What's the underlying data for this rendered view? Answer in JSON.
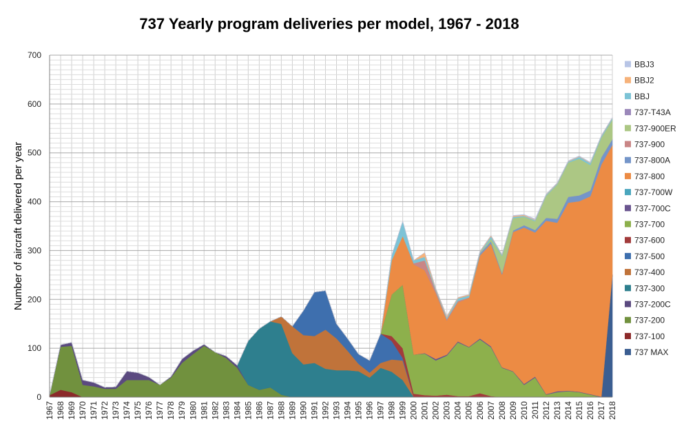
{
  "chart_data": {
    "type": "area",
    "stacked": true,
    "title": "737 Yearly program deliveries  per model, 1967 - 2018",
    "xlabel": "",
    "ylabel": "Number  of aircraft delivered per year",
    "ylim": [
      0,
      700
    ],
    "yticks": [
      0,
      100,
      200,
      300,
      400,
      500,
      600,
      700
    ],
    "grid": true,
    "legend_position": "right",
    "x": [
      1967,
      1968,
      1969,
      1970,
      1971,
      1972,
      1973,
      1974,
      1975,
      1976,
      1977,
      1978,
      1979,
      1980,
      1981,
      1982,
      1983,
      1984,
      1985,
      1986,
      1987,
      1988,
      1989,
      1990,
      1991,
      1992,
      1993,
      1994,
      1995,
      1996,
      1997,
      1998,
      1999,
      2000,
      2001,
      2002,
      2003,
      2004,
      2005,
      2006,
      2007,
      2008,
      2009,
      2010,
      2011,
      2012,
      2013,
      2014,
      2015,
      2016,
      2017,
      2018
    ],
    "series": [
      {
        "name": "737 MAX",
        "color": "#3b5e91",
        "values": [
          0,
          0,
          0,
          0,
          0,
          0,
          0,
          0,
          0,
          0,
          0,
          0,
          0,
          0,
          0,
          0,
          0,
          0,
          0,
          0,
          0,
          0,
          0,
          0,
          0,
          0,
          0,
          0,
          0,
          0,
          0,
          0,
          0,
          0,
          0,
          0,
          0,
          0,
          0,
          0,
          0,
          0,
          0,
          0,
          0,
          0,
          0,
          0,
          0,
          0,
          0,
          250
        ]
      },
      {
        "name": "737-100",
        "color": "#8c2a2a",
        "values": [
          4,
          15,
          10,
          0,
          0,
          0,
          0,
          0,
          0,
          0,
          0,
          0,
          0,
          0,
          0,
          0,
          0,
          0,
          0,
          0,
          0,
          0,
          0,
          0,
          0,
          0,
          0,
          0,
          0,
          0,
          0,
          0,
          0,
          0,
          0,
          0,
          0,
          0,
          0,
          0,
          0,
          0,
          0,
          0,
          0,
          0,
          0,
          0,
          0,
          0,
          0,
          0
        ]
      },
      {
        "name": "737-200",
        "color": "#71913e",
        "values": [
          0,
          88,
          95,
          25,
          22,
          17,
          17,
          35,
          35,
          35,
          25,
          40,
          70,
          88,
          105,
          92,
          80,
          60,
          25,
          15,
          20,
          5,
          0,
          0,
          0,
          0,
          0,
          0,
          0,
          0,
          0,
          0,
          0,
          0,
          0,
          0,
          0,
          0,
          0,
          0,
          0,
          0,
          0,
          0,
          0,
          0,
          0,
          0,
          0,
          0,
          0,
          0
        ]
      },
      {
        "name": "737-200C",
        "color": "#5b4a80",
        "values": [
          0,
          4,
          7,
          10,
          8,
          3,
          4,
          18,
          15,
          6,
          0,
          2,
          8,
          7,
          3,
          0,
          4,
          5,
          0,
          0,
          0,
          0,
          0,
          0,
          0,
          0,
          0,
          0,
          0,
          0,
          0,
          0,
          0,
          0,
          0,
          0,
          0,
          0,
          0,
          0,
          0,
          0,
          0,
          0,
          0,
          0,
          0,
          0,
          0,
          0,
          0,
          0
        ]
      },
      {
        "name": "737-300",
        "color": "#2e7f8e",
        "values": [
          0,
          0,
          0,
          0,
          0,
          0,
          0,
          0,
          0,
          0,
          0,
          0,
          0,
          0,
          0,
          0,
          0,
          0,
          90,
          125,
          135,
          145,
          90,
          67,
          70,
          58,
          55,
          55,
          53,
          40,
          60,
          52,
          35,
          0,
          0,
          0,
          0,
          0,
          0,
          0,
          0,
          0,
          0,
          0,
          0,
          0,
          0,
          0,
          0,
          0,
          0,
          0
        ]
      },
      {
        "name": "737-400",
        "color": "#c0733a",
        "values": [
          0,
          0,
          0,
          0,
          0,
          0,
          0,
          0,
          0,
          0,
          0,
          0,
          0,
          0,
          0,
          0,
          0,
          0,
          0,
          0,
          0,
          15,
          55,
          60,
          55,
          80,
          65,
          40,
          15,
          10,
          10,
          25,
          40,
          0,
          0,
          0,
          0,
          0,
          0,
          0,
          0,
          0,
          0,
          0,
          0,
          0,
          0,
          0,
          0,
          0,
          0,
          0
        ]
      },
      {
        "name": "737-500",
        "color": "#3e6fae",
        "values": [
          0,
          0,
          0,
          0,
          0,
          0,
          0,
          0,
          0,
          0,
          0,
          0,
          0,
          0,
          0,
          0,
          0,
          0,
          0,
          0,
          0,
          0,
          0,
          50,
          90,
          80,
          30,
          25,
          20,
          25,
          60,
          38,
          5,
          0,
          0,
          0,
          0,
          0,
          0,
          0,
          0,
          0,
          0,
          0,
          0,
          0,
          0,
          0,
          0,
          0,
          0,
          0
        ]
      },
      {
        "name": "737-600",
        "color": "#a23b3b",
        "values": [
          0,
          0,
          0,
          0,
          0,
          0,
          0,
          0,
          0,
          0,
          0,
          0,
          0,
          0,
          0,
          0,
          0,
          0,
          0,
          0,
          0,
          0,
          0,
          0,
          0,
          0,
          0,
          0,
          0,
          0,
          0,
          10,
          20,
          7,
          4,
          3,
          5,
          2,
          2,
          8,
          2,
          0,
          0,
          0,
          0,
          0,
          0,
          0,
          0,
          0,
          0,
          0
        ]
      },
      {
        "name": "737-700",
        "color": "#8db04c",
        "values": [
          0,
          0,
          0,
          0,
          0,
          0,
          0,
          0,
          0,
          0,
          0,
          0,
          0,
          0,
          0,
          0,
          0,
          0,
          0,
          0,
          0,
          0,
          0,
          0,
          0,
          0,
          0,
          0,
          0,
          0,
          0,
          85,
          130,
          80,
          85,
          72,
          80,
          110,
          100,
          110,
          100,
          60,
          52,
          25,
          40,
          5,
          10,
          12,
          10,
          5,
          0,
          0
        ]
      },
      {
        "name": "737-700C",
        "color": "#6a558f",
        "values": [
          0,
          0,
          0,
          0,
          0,
          0,
          0,
          0,
          0,
          0,
          0,
          0,
          0,
          0,
          0,
          0,
          0,
          0,
          0,
          0,
          0,
          0,
          0,
          0,
          0,
          0,
          0,
          0,
          0,
          0,
          0,
          0,
          0,
          0,
          1,
          3,
          2,
          2,
          1,
          2,
          2,
          1,
          1,
          2,
          2,
          1,
          2,
          1,
          1,
          1,
          1,
          1
        ]
      },
      {
        "name": "737-700W",
        "color": "#4aa6bd",
        "values": [
          0,
          0,
          0,
          0,
          0,
          0,
          0,
          0,
          0,
          0,
          0,
          0,
          0,
          0,
          0,
          0,
          0,
          0,
          0,
          0,
          0,
          0,
          0,
          0,
          0,
          0,
          0,
          0,
          0,
          0,
          0,
          0,
          0,
          0,
          0,
          0,
          0,
          0,
          0,
          0,
          0,
          0,
          0,
          0,
          0,
          0,
          0,
          0,
          0,
          0,
          0,
          0
        ]
      },
      {
        "name": "737-800",
        "color": "#ec8b44",
        "values": [
          0,
          0,
          0,
          0,
          0,
          0,
          0,
          0,
          0,
          0,
          0,
          0,
          0,
          0,
          0,
          0,
          0,
          0,
          0,
          0,
          0,
          0,
          0,
          0,
          0,
          0,
          0,
          0,
          0,
          0,
          0,
          70,
          100,
          185,
          170,
          135,
          70,
          80,
          100,
          170,
          210,
          190,
          285,
          320,
          295,
          355,
          345,
          385,
          390,
          405,
          475,
          265
        ]
      },
      {
        "name": "737-800A",
        "color": "#7495c9",
        "values": [
          0,
          0,
          0,
          0,
          0,
          0,
          0,
          0,
          0,
          0,
          0,
          0,
          0,
          0,
          0,
          0,
          0,
          0,
          0,
          0,
          0,
          0,
          0,
          0,
          0,
          0,
          0,
          0,
          0,
          0,
          0,
          0,
          0,
          0,
          0,
          0,
          0,
          0,
          0,
          3,
          5,
          3,
          3,
          5,
          5,
          6,
          8,
          12,
          12,
          12,
          15,
          12
        ]
      },
      {
        "name": "737-900",
        "color": "#c98686",
        "values": [
          0,
          0,
          0,
          0,
          0,
          0,
          0,
          0,
          0,
          0,
          0,
          0,
          0,
          0,
          0,
          0,
          0,
          0,
          0,
          0,
          0,
          0,
          0,
          0,
          0,
          0,
          0,
          0,
          0,
          0,
          0,
          0,
          0,
          2,
          20,
          5,
          3,
          3,
          1,
          1,
          0,
          0,
          0,
          0,
          0,
          0,
          0,
          0,
          0,
          0,
          0,
          0
        ]
      },
      {
        "name": "737-900ER",
        "color": "#acc784",
        "values": [
          0,
          0,
          0,
          0,
          0,
          0,
          0,
          0,
          0,
          0,
          0,
          0,
          0,
          0,
          0,
          0,
          0,
          0,
          0,
          0,
          0,
          0,
          0,
          0,
          0,
          0,
          0,
          0,
          0,
          0,
          0,
          0,
          0,
          0,
          0,
          0,
          0,
          0,
          0,
          0,
          5,
          35,
          25,
          17,
          18,
          45,
          70,
          70,
          75,
          52,
          40,
          40
        ]
      },
      {
        "name": "737-T43A",
        "color": "#9b88ba",
        "values": [
          0,
          0,
          0,
          0,
          0,
          0,
          0,
          0,
          0,
          0,
          0,
          0,
          0,
          0,
          0,
          0,
          0,
          0,
          0,
          0,
          0,
          0,
          0,
          0,
          0,
          0,
          0,
          0,
          0,
          0,
          0,
          0,
          0,
          0,
          0,
          0,
          0,
          0,
          0,
          0,
          0,
          0,
          0,
          0,
          0,
          0,
          0,
          0,
          0,
          0,
          0,
          0
        ]
      },
      {
        "name": "BBJ",
        "color": "#7cc3d6",
        "values": [
          0,
          0,
          0,
          0,
          0,
          0,
          0,
          0,
          0,
          0,
          0,
          0,
          0,
          0,
          0,
          0,
          0,
          0,
          0,
          0,
          0,
          0,
          0,
          0,
          0,
          0,
          0,
          0,
          0,
          0,
          0,
          10,
          30,
          6,
          7,
          3,
          3,
          5,
          4,
          3,
          5,
          2,
          3,
          2,
          2,
          2,
          2,
          2,
          4,
          4,
          3,
          3
        ]
      },
      {
        "name": "BBJ2",
        "color": "#f6b27a",
        "values": [
          0,
          0,
          0,
          0,
          0,
          0,
          0,
          0,
          0,
          0,
          0,
          0,
          0,
          0,
          0,
          0,
          0,
          0,
          0,
          0,
          0,
          0,
          0,
          0,
          0,
          0,
          0,
          0,
          0,
          0,
          0,
          0,
          0,
          0,
          9,
          2,
          3,
          2,
          2,
          2,
          2,
          1,
          2,
          2,
          1,
          1,
          1,
          1,
          1,
          1,
          1,
          1
        ]
      },
      {
        "name": "BBJ3",
        "color": "#b8c5e6",
        "values": [
          0,
          0,
          0,
          0,
          0,
          0,
          0,
          0,
          0,
          0,
          0,
          0,
          0,
          0,
          0,
          0,
          0,
          0,
          0,
          0,
          0,
          0,
          0,
          0,
          0,
          0,
          0,
          0,
          0,
          0,
          0,
          0,
          0,
          0,
          0,
          0,
          0,
          0,
          0,
          0,
          0,
          0,
          1,
          1,
          2,
          1,
          1,
          1,
          1,
          1,
          1,
          1
        ]
      }
    ]
  }
}
